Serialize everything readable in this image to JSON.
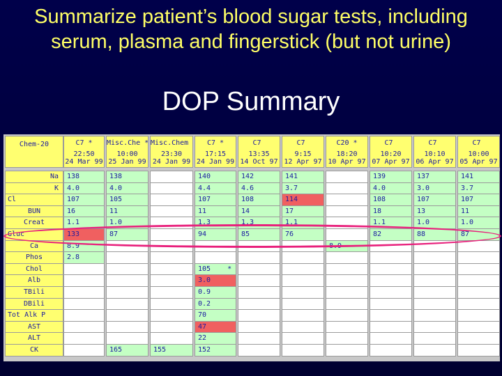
{
  "slide": {
    "title_line1": "Summarize patient’s blood sugar tests, including",
    "title_line2": "serum, plasma and fingerstick (but not urine)",
    "subtitle": "DOP Summary"
  },
  "colors": {
    "background": "#00003a",
    "title": "#ffff66",
    "subtitle": "#ffffff",
    "header_cell": "#ffff70",
    "green_cell": "#c4ffc4",
    "white_cell": "#ffffff",
    "red_cell": "#f06060",
    "cell_text": "#1a1aa0",
    "highlight_ellipse": "#e8207c"
  },
  "table": {
    "corner_label": "Chem-20",
    "columns": [
      {
        "panel": "C7",
        "flag": "*",
        "time": "22:50",
        "date": "24 Mar 99"
      },
      {
        "panel": "Misc.Che",
        "flag": "*",
        "time": "10:00",
        "date": "25 Jan 99"
      },
      {
        "panel": "Misc.Chem",
        "flag": "",
        "time": "23:30",
        "date": "24 Jan 99"
      },
      {
        "panel": "C7",
        "flag": "*",
        "time": "17:15",
        "date": "24 Jan 99"
      },
      {
        "panel": "C7",
        "flag": "",
        "time": "13:35",
        "date": "14 Oct 97"
      },
      {
        "panel": "C7",
        "flag": "",
        "time": "9:15",
        "date": "12 Apr 97"
      },
      {
        "panel": "C20",
        "flag": "*",
        "time": "18:20",
        "date": "10 Apr 97"
      },
      {
        "panel": "C7",
        "flag": "",
        "time": "10:20",
        "date": "07 Apr 97"
      },
      {
        "panel": "C7",
        "flag": "",
        "time": "10:10",
        "date": "06 Apr 97"
      },
      {
        "panel": "C7",
        "flag": "",
        "time": "10:00",
        "date": "05 Apr 97"
      }
    ],
    "rows": [
      {
        "label": "Na",
        "align": "r",
        "cells": [
          [
            "138",
            "g"
          ],
          [
            "138",
            "g"
          ],
          [
            "",
            "w"
          ],
          [
            "140",
            "g"
          ],
          [
            "142",
            "g"
          ],
          [
            "141",
            "g"
          ],
          [
            "",
            "w"
          ],
          [
            "139",
            "g"
          ],
          [
            "137",
            "g"
          ],
          [
            "141",
            "g"
          ]
        ]
      },
      {
        "label": "K",
        "align": "r",
        "cells": [
          [
            "4.0",
            "g"
          ],
          [
            "4.0",
            "g"
          ],
          [
            "",
            "w"
          ],
          [
            "4.4",
            "g"
          ],
          [
            "4.6",
            "g"
          ],
          [
            "3.7",
            "g"
          ],
          [
            "",
            "w"
          ],
          [
            "4.0",
            "g"
          ],
          [
            "3.0",
            "g"
          ],
          [
            "3.7",
            "g"
          ]
        ]
      },
      {
        "label": "Cl",
        "align": "l",
        "cells": [
          [
            "107",
            "g"
          ],
          [
            "105",
            "g"
          ],
          [
            "",
            "w"
          ],
          [
            "107",
            "g"
          ],
          [
            "108",
            "g"
          ],
          [
            "114",
            "r"
          ],
          [
            "",
            "w"
          ],
          [
            "108",
            "g"
          ],
          [
            "107",
            "g"
          ],
          [
            "107",
            "g"
          ]
        ]
      },
      {
        "label": "BUN",
        "align": "c",
        "cells": [
          [
            "16",
            "g"
          ],
          [
            "11",
            "g"
          ],
          [
            "",
            "w"
          ],
          [
            "11",
            "g"
          ],
          [
            "14",
            "g"
          ],
          [
            "17",
            "g"
          ],
          [
            "",
            "w"
          ],
          [
            "18",
            "g"
          ],
          [
            "13",
            "g"
          ],
          [
            "11",
            "g"
          ]
        ]
      },
      {
        "label": "Creat",
        "align": "c",
        "cells": [
          [
            "1.1",
            "g"
          ],
          [
            "1.0",
            "g"
          ],
          [
            "",
            "w"
          ],
          [
            "1.3",
            "g"
          ],
          [
            "1.3",
            "g"
          ],
          [
            "1.1",
            "g"
          ],
          [
            "",
            "w"
          ],
          [
            "1.1",
            "g"
          ],
          [
            "1.0",
            "g"
          ],
          [
            "1.0",
            "g"
          ]
        ]
      },
      {
        "label": "Gluc",
        "align": "l",
        "cells": [
          [
            "133",
            "r"
          ],
          [
            "87",
            "g"
          ],
          [
            "",
            "w"
          ],
          [
            "94",
            "g"
          ],
          [
            "85",
            "g"
          ],
          [
            "76",
            "g"
          ],
          [
            "",
            "w"
          ],
          [
            "82",
            "g"
          ],
          [
            "88",
            "g"
          ],
          [
            "87",
            "g"
          ]
        ]
      },
      {
        "label": "Ca",
        "align": "c",
        "cells": [
          [
            "8.9",
            "g"
          ],
          [
            "",
            "w"
          ],
          [
            "",
            "w"
          ],
          [
            "",
            "w"
          ],
          [
            "",
            "w"
          ],
          [
            "",
            "w"
          ],
          [
            "8.9",
            "g"
          ],
          [
            "",
            "w"
          ],
          [
            "",
            "w"
          ],
          [
            "",
            "w"
          ]
        ]
      },
      {
        "label": "Phos",
        "align": "c",
        "cells": [
          [
            "2.8",
            "g"
          ],
          [
            "",
            "w"
          ],
          [
            "",
            "w"
          ],
          [
            "",
            "w"
          ],
          [
            "",
            "w"
          ],
          [
            "",
            "w"
          ],
          [
            "",
            "w"
          ],
          [
            "",
            "w"
          ],
          [
            "",
            "w"
          ],
          [
            "",
            "w"
          ]
        ]
      },
      {
        "label": "Chol",
        "align": "c",
        "cells": [
          [
            "",
            "w"
          ],
          [
            "",
            "w"
          ],
          [
            "",
            "w"
          ],
          [
            "105    *",
            "g"
          ],
          [
            "",
            "w"
          ],
          [
            "",
            "w"
          ],
          [
            "",
            "w"
          ],
          [
            "",
            "w"
          ],
          [
            "",
            "w"
          ],
          [
            "",
            "w"
          ]
        ]
      },
      {
        "label": "Alb",
        "align": "c",
        "cells": [
          [
            "",
            "w"
          ],
          [
            "",
            "w"
          ],
          [
            "",
            "w"
          ],
          [
            "3.0",
            "r"
          ],
          [
            "",
            "w"
          ],
          [
            "",
            "w"
          ],
          [
            "",
            "w"
          ],
          [
            "",
            "w"
          ],
          [
            "",
            "w"
          ],
          [
            "",
            "w"
          ]
        ]
      },
      {
        "label": "TBili",
        "align": "c",
        "cells": [
          [
            "",
            "w"
          ],
          [
            "",
            "w"
          ],
          [
            "",
            "w"
          ],
          [
            "0.9",
            "g"
          ],
          [
            "",
            "w"
          ],
          [
            "",
            "w"
          ],
          [
            "",
            "w"
          ],
          [
            "",
            "w"
          ],
          [
            "",
            "w"
          ],
          [
            "",
            "w"
          ]
        ]
      },
      {
        "label": "DBili",
        "align": "c",
        "cells": [
          [
            "",
            "w"
          ],
          [
            "",
            "w"
          ],
          [
            "",
            "w"
          ],
          [
            "0.2",
            "g"
          ],
          [
            "",
            "w"
          ],
          [
            "",
            "w"
          ],
          [
            "",
            "w"
          ],
          [
            "",
            "w"
          ],
          [
            "",
            "w"
          ],
          [
            "",
            "w"
          ]
        ]
      },
      {
        "label": "Tot Alk P",
        "align": "j",
        "cells": [
          [
            "",
            "w"
          ],
          [
            "",
            "w"
          ],
          [
            "",
            "w"
          ],
          [
            "70",
            "g"
          ],
          [
            "",
            "w"
          ],
          [
            "",
            "w"
          ],
          [
            "",
            "w"
          ],
          [
            "",
            "w"
          ],
          [
            "",
            "w"
          ],
          [
            "",
            "w"
          ]
        ]
      },
      {
        "label": "AST",
        "align": "c",
        "cells": [
          [
            "",
            "w"
          ],
          [
            "",
            "w"
          ],
          [
            "",
            "w"
          ],
          [
            "47",
            "r"
          ],
          [
            "",
            "w"
          ],
          [
            "",
            "w"
          ],
          [
            "",
            "w"
          ],
          [
            "",
            "w"
          ],
          [
            "",
            "w"
          ],
          [
            "",
            "w"
          ]
        ]
      },
      {
        "label": "ALT",
        "align": "c",
        "cells": [
          [
            "",
            "w"
          ],
          [
            "",
            "w"
          ],
          [
            "",
            "w"
          ],
          [
            "22",
            "g"
          ],
          [
            "",
            "w"
          ],
          [
            "",
            "w"
          ],
          [
            "",
            "w"
          ],
          [
            "",
            "w"
          ],
          [
            "",
            "w"
          ],
          [
            "",
            "w"
          ]
        ]
      },
      {
        "label": "CK",
        "align": "c",
        "cells": [
          [
            "",
            "w"
          ],
          [
            "165",
            "g"
          ],
          [
            "155",
            "g"
          ],
          [
            "152",
            "g"
          ],
          [
            "",
            "w"
          ],
          [
            "",
            "w"
          ],
          [
            "",
            "w"
          ],
          [
            "",
            "w"
          ],
          [
            "",
            "w"
          ],
          [
            "",
            "w"
          ]
        ]
      }
    ]
  }
}
